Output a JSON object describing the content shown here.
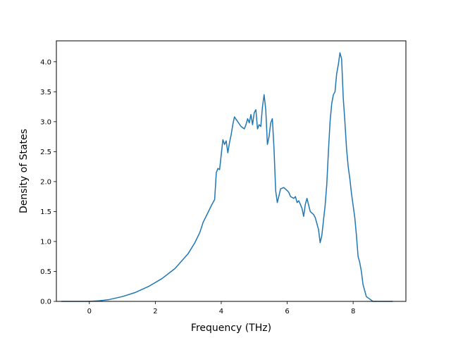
{
  "chart_data": {
    "type": "line",
    "title": "",
    "xlabel": "Frequency (THz)",
    "ylabel": "Density of States",
    "xlim": [
      -1.0,
      9.6
    ],
    "ylim": [
      0.0,
      4.35
    ],
    "xticks": [
      0,
      2,
      4,
      6,
      8
    ],
    "yticks": [
      0.0,
      0.5,
      1.0,
      1.5,
      2.0,
      2.5,
      3.0,
      3.5,
      4.0
    ],
    "xtick_labels": [
      "0",
      "2",
      "4",
      "6",
      "8"
    ],
    "ytick_labels": [
      "0.0",
      "0.5",
      "1.0",
      "1.5",
      "2.0",
      "2.5",
      "3.0",
      "3.5",
      "4.0"
    ],
    "grid": false,
    "legend": "none",
    "series": [
      {
        "color": "#1f77b4",
        "x": [
          -0.85,
          -0.5,
          0.0,
          0.3,
          0.6,
          1.0,
          1.4,
          1.8,
          2.2,
          2.6,
          3.0,
          3.2,
          3.35,
          3.45,
          3.55,
          3.7,
          3.75,
          3.8,
          3.85,
          3.9,
          3.95,
          4.0,
          4.05,
          4.1,
          4.15,
          4.2,
          4.25,
          4.3,
          4.35,
          4.4,
          4.5,
          4.6,
          4.7,
          4.75,
          4.8,
          4.85,
          4.9,
          4.95,
          5.0,
          5.05,
          5.1,
          5.15,
          5.2,
          5.25,
          5.3,
          5.35,
          5.4,
          5.45,
          5.5,
          5.55,
          5.6,
          5.65,
          5.7,
          5.8,
          5.9,
          6.0,
          6.05,
          6.1,
          6.2,
          6.25,
          6.3,
          6.35,
          6.4,
          6.45,
          6.5,
          6.55,
          6.6,
          6.7,
          6.8,
          6.85,
          6.9,
          6.95,
          7.0,
          7.05,
          7.1,
          7.15,
          7.2,
          7.25,
          7.3,
          7.35,
          7.4,
          7.45,
          7.5,
          7.55,
          7.6,
          7.65,
          7.7,
          7.75,
          7.8,
          7.85,
          7.9,
          7.95,
          8.0,
          8.05,
          8.1,
          8.15,
          8.2,
          8.25,
          8.3,
          8.35,
          8.4,
          8.6,
          8.8,
          9.0,
          9.2
        ],
        "y": [
          0.0,
          0.0,
          0.0,
          0.01,
          0.03,
          0.08,
          0.15,
          0.25,
          0.38,
          0.55,
          0.8,
          0.98,
          1.15,
          1.32,
          1.43,
          1.6,
          1.65,
          1.7,
          2.15,
          2.22,
          2.2,
          2.45,
          2.7,
          2.62,
          2.68,
          2.48,
          2.65,
          2.78,
          2.95,
          3.08,
          3.0,
          2.92,
          2.88,
          2.95,
          3.05,
          2.98,
          3.12,
          2.95,
          3.15,
          3.2,
          2.88,
          2.95,
          2.92,
          3.25,
          3.45,
          3.2,
          2.62,
          2.75,
          2.98,
          3.05,
          2.55,
          1.85,
          1.65,
          1.88,
          1.9,
          1.85,
          1.82,
          1.75,
          1.72,
          1.75,
          1.65,
          1.68,
          1.62,
          1.55,
          1.42,
          1.62,
          1.72,
          1.5,
          1.45,
          1.4,
          1.3,
          1.2,
          0.98,
          1.1,
          1.35,
          1.6,
          1.95,
          2.5,
          3.0,
          3.3,
          3.45,
          3.5,
          3.8,
          3.95,
          4.15,
          4.05,
          3.4,
          3.0,
          2.55,
          2.25,
          2.05,
          1.8,
          1.6,
          1.4,
          1.1,
          0.75,
          0.65,
          0.5,
          0.28,
          0.18,
          0.08,
          0.0,
          0.0,
          0.0,
          0.0
        ]
      }
    ]
  }
}
